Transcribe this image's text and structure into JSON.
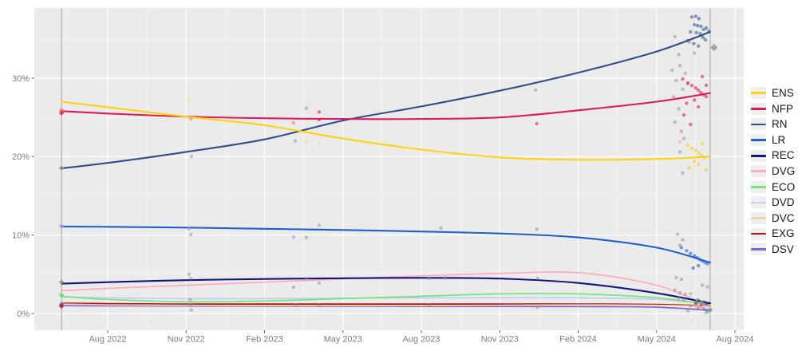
{
  "figure": {
    "background": "#ffffff",
    "panel_bg": "#ebebeb",
    "grid_color": "#ffffff",
    "event_line_color": "#a9a9a9",
    "tick_color": "#666666",
    "tick_label_color": "#7c7c7c"
  },
  "chart_data": {
    "type": "line",
    "title": "",
    "xlabel": "",
    "ylabel": "",
    "grid": true,
    "legend_position": "right",
    "x_axis": {
      "ticks": [
        "Aug 2022",
        "Nov 2022",
        "Feb 2023",
        "May 2023",
        "Aug 2023",
        "Nov 2023",
        "Feb 2024",
        "May 2024",
        "Aug 2024"
      ],
      "tick_months": [
        0,
        3,
        6,
        9,
        12,
        15,
        18,
        21,
        24
      ]
    },
    "y_axis": {
      "ticks": [
        "0%",
        "10%",
        "20%",
        "30%"
      ],
      "tick_values": [
        0,
        10,
        20,
        30
      ],
      "minor_values": [
        5,
        15,
        25,
        35
      ]
    },
    "ylim": [
      -2.3,
      39.1
    ],
    "event_lines_months": [
      -1.77,
      23.05
    ],
    "sample_x_months": [
      -1.77,
      0,
      3,
      6,
      9,
      12,
      15,
      18,
      21,
      23.05
    ],
    "series": [
      {
        "name": "ENS",
        "color": "#FFD30F",
        "width": 2.1,
        "values": [
          27.0,
          26.3,
          25.1,
          24.0,
          22.3,
          20.9,
          19.9,
          19.6,
          19.7,
          20.0
        ]
      },
      {
        "name": "NFP",
        "color": "#DD1A60",
        "width": 2.1,
        "values": [
          25.8,
          25.5,
          25.1,
          24.9,
          24.8,
          24.8,
          25.0,
          25.9,
          27.0,
          28.1
        ]
      },
      {
        "name": "RN",
        "color": "#2F4E87",
        "width": 2.1,
        "values": [
          18.5,
          19.2,
          20.6,
          22.2,
          24.6,
          26.4,
          28.4,
          30.7,
          33.4,
          35.9
        ]
      },
      {
        "name": "LR",
        "color": "#1E5FCE",
        "width": 2.1,
        "values": [
          11.1,
          11.05,
          10.95,
          10.8,
          10.65,
          10.45,
          10.2,
          9.7,
          8.4,
          6.5
        ]
      },
      {
        "name": "REC",
        "color": "#16167A",
        "width": 2.1,
        "values": [
          3.8,
          4.0,
          4.25,
          4.4,
          4.5,
          4.55,
          4.45,
          3.9,
          2.6,
          1.3
        ]
      },
      {
        "name": "DVG",
        "color": "#FFA9BB",
        "width": 1.7,
        "values": [
          2.9,
          3.2,
          3.6,
          4.0,
          4.4,
          4.8,
          5.1,
          5.2,
          3.6,
          0.8
        ]
      },
      {
        "name": "ECO",
        "color": "#6FE773",
        "width": 1.7,
        "values": [
          2.2,
          1.8,
          1.5,
          1.6,
          1.9,
          2.2,
          2.5,
          2.5,
          2.0,
          1.1
        ]
      },
      {
        "name": "DVD",
        "color": "#C2CBF0",
        "width": 1.7,
        "values": [
          2.1,
          2.0,
          1.9,
          1.9,
          1.95,
          2.0,
          2.0,
          2.0,
          1.8,
          1.2
        ]
      },
      {
        "name": "DVC",
        "color": "#EFD9A6",
        "width": 1.7,
        "values": [
          1.2,
          1.1,
          1.05,
          1.0,
          1.0,
          1.0,
          1.05,
          1.1,
          1.05,
          0.9
        ]
      },
      {
        "name": "EXG",
        "color": "#B8101E",
        "width": 2.0,
        "values": [
          1.3,
          1.25,
          1.2,
          1.2,
          1.2,
          1.2,
          1.2,
          1.2,
          1.15,
          0.95
        ]
      },
      {
        "name": "DSV",
        "color": "#7D64D9",
        "width": 1.7,
        "values": [
          1.0,
          0.98,
          0.95,
          0.93,
          0.92,
          0.9,
          0.9,
          0.88,
          0.8,
          0.4
        ]
      }
    ],
    "point_colors": {
      "gray": "#8C8C8C",
      "salmon": "#F08055",
      "yellowlt": "#F2DF7A",
      "peri": "#93A2DA",
      "ENS": "#F0CE1E",
      "NFP": "#DD1A60",
      "RN": "#3B5B99",
      "LR": "#2563CF",
      "REC": "#16167A",
      "DVG": "#FF9FB4",
      "ECO": "#5FDD66",
      "DVD": "#C2CBF0",
      "DVC": "#E8CF95",
      "EXG": "#B8101E",
      "DSV": "#7D64D9"
    },
    "points": [
      [
        -1.77,
        25.9,
        "salmon",
        "d"
      ],
      [
        -1.77,
        25.55,
        "NFP",
        "d"
      ],
      [
        -1.77,
        18.55,
        "gray",
        "d"
      ],
      [
        -1.77,
        11.15,
        "peri",
        "d"
      ],
      [
        -1.77,
        4.0,
        "gray",
        "d"
      ],
      [
        -1.77,
        2.35,
        "ECO",
        "d"
      ],
      [
        -1.77,
        1.15,
        "DSV",
        "d"
      ],
      [
        -1.77,
        0.95,
        "EXG",
        "d"
      ],
      [
        3.11,
        27.2,
        "yellowlt",
        "c"
      ],
      [
        3.18,
        24.8,
        "salmon",
        "c"
      ],
      [
        3.2,
        20.0,
        "gray",
        "c"
      ],
      [
        3.11,
        10.8,
        "peri",
        "c"
      ],
      [
        3.18,
        10.05,
        "gray",
        "c"
      ],
      [
        3.11,
        5.0,
        "gray",
        "c"
      ],
      [
        3.18,
        4.45,
        "gray",
        "c"
      ],
      [
        3.15,
        1.75,
        "gray",
        "c"
      ],
      [
        3.18,
        1.15,
        "gray",
        "c"
      ],
      [
        3.2,
        0.45,
        "gray",
        "c"
      ],
      [
        7.11,
        24.3,
        "salmon",
        "c"
      ],
      [
        7.18,
        22.0,
        "gray",
        "c"
      ],
      [
        7.11,
        9.75,
        "peri",
        "c"
      ],
      [
        7.11,
        3.35,
        "gray",
        "c"
      ],
      [
        7.2,
        1.1,
        "gray",
        "c"
      ],
      [
        7.6,
        26.2,
        "gray",
        "c"
      ],
      [
        7.6,
        21.9,
        "yellowlt",
        "c"
      ],
      [
        7.6,
        9.7,
        "gray",
        "c"
      ],
      [
        7.6,
        4.45,
        "gray",
        "c"
      ],
      [
        8.09,
        25.7,
        "NFP",
        "c"
      ],
      [
        8.09,
        24.7,
        "NFP",
        "c"
      ],
      [
        8.09,
        21.6,
        "yellowlt",
        "c"
      ],
      [
        8.09,
        11.25,
        "peri",
        "c"
      ],
      [
        8.09,
        3.9,
        "gray",
        "c"
      ],
      [
        8.09,
        1.05,
        "gray",
        "c"
      ],
      [
        12.75,
        10.9,
        "gray",
        "c"
      ],
      [
        12.9,
        4.55,
        "gray",
        "c"
      ],
      [
        12.3,
        4.5,
        "gray",
        "c"
      ],
      [
        12.3,
        1.1,
        "gray",
        "c"
      ],
      [
        16.37,
        28.5,
        "gray",
        "c"
      ],
      [
        16.42,
        24.2,
        "NFP",
        "c"
      ],
      [
        16.42,
        10.75,
        "gray",
        "c"
      ],
      [
        16.45,
        4.5,
        "gray",
        "c"
      ],
      [
        16.45,
        0.8,
        "gray",
        "c"
      ],
      [
        21.7,
        35.3,
        "gray",
        "c"
      ],
      [
        21.85,
        33.0,
        "gray",
        "c"
      ],
      [
        21.9,
        31.6,
        "gray",
        "c"
      ],
      [
        21.6,
        31.0,
        "gray",
        "c"
      ],
      [
        21.75,
        29.7,
        "gray",
        "c"
      ],
      [
        22.0,
        28.6,
        "gray",
        "c"
      ],
      [
        21.65,
        27.6,
        "gray",
        "c"
      ],
      [
        21.85,
        26.1,
        "gray",
        "c"
      ],
      [
        21.7,
        24.4,
        "gray",
        "c"
      ],
      [
        22.1,
        30.6,
        "gray",
        "c"
      ],
      [
        22.2,
        29.3,
        "gray",
        "c"
      ],
      [
        21.95,
        23.2,
        "gray",
        "c"
      ],
      [
        22.05,
        22.3,
        "gray",
        "c"
      ],
      [
        21.9,
        20.6,
        "gray",
        "c"
      ],
      [
        22.0,
        17.9,
        "gray",
        "c"
      ],
      [
        21.8,
        10.1,
        "gray",
        "c"
      ],
      [
        22.0,
        9.4,
        "gray",
        "c"
      ],
      [
        21.9,
        8.7,
        "gray",
        "c"
      ],
      [
        21.75,
        4.6,
        "gray",
        "c"
      ],
      [
        21.95,
        4.35,
        "gray",
        "c"
      ],
      [
        21.7,
        3.0,
        "gray",
        "c"
      ],
      [
        21.9,
        2.65,
        "gray",
        "c"
      ],
      [
        22.1,
        2.45,
        "gray",
        "c"
      ],
      [
        21.85,
        1.95,
        "gray",
        "c"
      ],
      [
        22.05,
        1.75,
        "gray",
        "c"
      ],
      [
        22.3,
        0.95,
        "gray",
        "c"
      ],
      [
        22.2,
        0.35,
        "gray",
        "c"
      ],
      [
        22.95,
        0.2,
        "gray",
        "c"
      ],
      [
        22.75,
        3.6,
        "gray",
        "c"
      ],
      [
        22.95,
        3.4,
        "gray",
        "c"
      ],
      [
        22.25,
        34.6,
        "gray",
        "c"
      ],
      [
        22.45,
        33.2,
        "gray",
        "c"
      ],
      [
        22.35,
        37.8,
        "RN",
        "c"
      ],
      [
        22.5,
        37.9,
        "RN",
        "c"
      ],
      [
        22.62,
        37.6,
        "RN",
        "c"
      ],
      [
        22.45,
        36.8,
        "RN",
        "c"
      ],
      [
        22.57,
        36.7,
        "RN",
        "c"
      ],
      [
        22.7,
        36.6,
        "RN",
        "c"
      ],
      [
        22.3,
        35.9,
        "RN",
        "c"
      ],
      [
        22.52,
        35.8,
        "RN",
        "c"
      ],
      [
        22.67,
        35.7,
        "RN",
        "c"
      ],
      [
        22.8,
        36.2,
        "RN",
        "c"
      ],
      [
        22.9,
        36.4,
        "RN",
        "c"
      ],
      [
        22.2,
        34.8,
        "RN",
        "c"
      ],
      [
        22.42,
        34.4,
        "RN",
        "c"
      ],
      [
        22.77,
        35.2,
        "RN",
        "c"
      ],
      [
        22.87,
        34.9,
        "RN",
        "c"
      ],
      [
        23.0,
        36.0,
        "RN",
        "c"
      ],
      [
        22.6,
        34.1,
        "RN",
        "c"
      ],
      [
        22.0,
        29.9,
        "NFP",
        "c"
      ],
      [
        22.2,
        29.4,
        "NFP",
        "c"
      ],
      [
        22.35,
        29.05,
        "NFP",
        "c"
      ],
      [
        22.5,
        28.75,
        "NFP",
        "c"
      ],
      [
        22.6,
        28.45,
        "NFP",
        "c"
      ],
      [
        22.7,
        28.15,
        "NFP",
        "c"
      ],
      [
        22.8,
        27.9,
        "NFP",
        "c"
      ],
      [
        22.9,
        27.65,
        "NFP",
        "c"
      ],
      [
        22.45,
        27.2,
        "NFP",
        "c"
      ],
      [
        22.15,
        26.8,
        "NFP",
        "c"
      ],
      [
        22.6,
        26.35,
        "NFP",
        "c"
      ],
      [
        22.75,
        30.2,
        "NFP",
        "c"
      ],
      [
        22.9,
        29.1,
        "NFP",
        "c"
      ],
      [
        22.05,
        25.3,
        "NFP",
        "c"
      ],
      [
        22.3,
        24.1,
        "NFP",
        "c"
      ],
      [
        21.95,
        23.3,
        "DVG",
        "c"
      ],
      [
        21.9,
        21.9,
        "DVG",
        "c"
      ],
      [
        22.2,
        21.4,
        "ENS",
        "c"
      ],
      [
        22.35,
        21.05,
        "ENS",
        "c"
      ],
      [
        22.5,
        20.75,
        "ENS",
        "c"
      ],
      [
        22.62,
        20.45,
        "ENS",
        "c"
      ],
      [
        22.72,
        20.15,
        "ENS",
        "c"
      ],
      [
        22.82,
        19.85,
        "ENS",
        "c"
      ],
      [
        22.45,
        19.4,
        "ENS",
        "c"
      ],
      [
        22.6,
        19.0,
        "ENS",
        "c"
      ],
      [
        22.25,
        18.6,
        "ENS",
        "c"
      ],
      [
        22.75,
        21.7,
        "ENS",
        "c"
      ],
      [
        22.9,
        18.3,
        "ENS",
        "c"
      ],
      [
        21.95,
        8.4,
        "LR",
        "c"
      ],
      [
        22.15,
        8.0,
        "LR",
        "c"
      ],
      [
        22.3,
        7.65,
        "LR",
        "c"
      ],
      [
        22.45,
        7.35,
        "LR",
        "c"
      ],
      [
        22.55,
        7.1,
        "LR",
        "c"
      ],
      [
        22.65,
        6.9,
        "LR",
        "c"
      ],
      [
        22.75,
        6.7,
        "LR",
        "c"
      ],
      [
        22.85,
        6.5,
        "LR",
        "c"
      ],
      [
        22.6,
        6.1,
        "LR",
        "c"
      ],
      [
        22.4,
        5.8,
        "LR",
        "c"
      ],
      [
        22.95,
        6.35,
        "LR",
        "c"
      ],
      [
        22.6,
        1.65,
        "REC",
        "c"
      ],
      [
        22.8,
        1.45,
        "REC",
        "c"
      ],
      [
        22.9,
        1.25,
        "REC",
        "c"
      ],
      [
        22.5,
        1.3,
        "EXG",
        "c"
      ],
      [
        22.7,
        1.1,
        "EXG",
        "c"
      ],
      [
        22.55,
        1.75,
        "ECO",
        "c"
      ],
      [
        22.75,
        1.5,
        "ECO",
        "c"
      ],
      [
        22.88,
        0.1,
        "ECO",
        "c"
      ],
      [
        22.65,
        1.35,
        "peri",
        "c"
      ],
      [
        22.85,
        1.15,
        "peri",
        "c"
      ],
      [
        22.3,
        2.5,
        "peri",
        "c"
      ],
      [
        22.6,
        0.8,
        "DSV",
        "c"
      ],
      [
        22.8,
        0.6,
        "DSV",
        "c"
      ],
      [
        22.92,
        0.45,
        "DSV",
        "c"
      ],
      [
        22.5,
        0.9,
        "DVG",
        "c"
      ],
      [
        22.7,
        0.7,
        "DVG",
        "c"
      ],
      [
        22.62,
        1.0,
        "DVC",
        "c"
      ],
      [
        23.2,
        33.9,
        "gray",
        "D"
      ],
      [
        23.05,
        0.45,
        "gray",
        "d"
      ]
    ]
  },
  "legend": {
    "items": [
      {
        "label": "ENS",
        "color": "#FFD30F"
      },
      {
        "label": "NFP",
        "color": "#DD1A60"
      },
      {
        "label": "RN",
        "color": "#2F4E87"
      },
      {
        "label": "LR",
        "color": "#1E5FCE"
      },
      {
        "label": "REC",
        "color": "#16167A"
      },
      {
        "label": "DVG",
        "color": "#FFA9BB"
      },
      {
        "label": "ECO",
        "color": "#6FE773"
      },
      {
        "label": "DVD",
        "color": "#C2CBF0"
      },
      {
        "label": "DVC",
        "color": "#EFD9A6"
      },
      {
        "label": "EXG",
        "color": "#B8101E"
      },
      {
        "label": "DSV",
        "color": "#7D64D9"
      }
    ]
  }
}
